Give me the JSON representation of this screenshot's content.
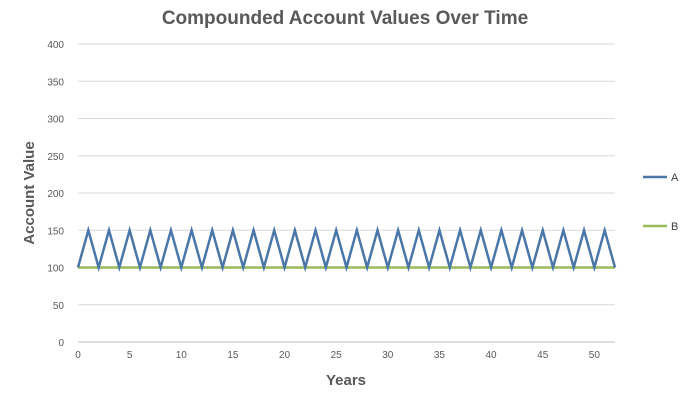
{
  "chart_data": {
    "type": "line",
    "title": "Compounded Account Values Over Time",
    "xlabel": "Years",
    "ylabel": "Account Value",
    "xlim": [
      0,
      52
    ],
    "ylim": [
      0,
      400
    ],
    "x_ticks": [
      0,
      5,
      10,
      15,
      20,
      25,
      30,
      35,
      40,
      45,
      50
    ],
    "y_ticks": [
      0,
      50,
      100,
      150,
      200,
      250,
      300,
      350,
      400
    ],
    "grid": "horizontal",
    "legend_position": "right",
    "series": [
      {
        "name": "A",
        "color": "#4a76a8",
        "x": [
          0,
          1,
          2,
          3,
          4,
          5,
          6,
          7,
          8,
          9,
          10,
          11,
          12,
          13,
          14,
          15,
          16,
          17,
          18,
          19,
          20,
          21,
          22,
          23,
          24,
          25,
          26,
          27,
          28,
          29,
          30,
          31,
          32,
          33,
          34,
          35,
          36,
          37,
          38,
          39,
          40,
          41,
          42,
          43,
          44,
          45,
          46,
          47,
          48,
          49,
          50,
          51,
          52
        ],
        "values": [
          100,
          150,
          100,
          150,
          100,
          150,
          100,
          150,
          100,
          150,
          100,
          150,
          100,
          150,
          100,
          150,
          100,
          150,
          100,
          150,
          100,
          150,
          100,
          150,
          100,
          150,
          100,
          150,
          100,
          150,
          100,
          150,
          100,
          150,
          100,
          150,
          100,
          150,
          100,
          150,
          100,
          150,
          100,
          150,
          100,
          150,
          100,
          150,
          100,
          150,
          100,
          150,
          100
        ]
      },
      {
        "name": "B",
        "color": "#9bbb59",
        "x": [
          0,
          1,
          2,
          3,
          4,
          5,
          6,
          7,
          8,
          9,
          10,
          11,
          12,
          13,
          14,
          15,
          16,
          17,
          18,
          19,
          20,
          21,
          22,
          23,
          24,
          25,
          26,
          27,
          28,
          29,
          30,
          31,
          32,
          33,
          34,
          35,
          36,
          37,
          38,
          39,
          40,
          41,
          42,
          43,
          44,
          45,
          46,
          47,
          48,
          49,
          50,
          51,
          52
        ],
        "values": [
          100,
          100,
          100,
          100,
          100,
          100,
          100,
          100,
          100,
          100,
          100,
          100,
          100,
          100,
          100,
          100,
          100,
          100,
          100,
          100,
          100,
          100,
          100,
          100,
          100,
          100,
          100,
          100,
          100,
          100,
          100,
          100,
          100,
          100,
          100,
          100,
          100,
          100,
          100,
          100,
          100,
          100,
          100,
          100,
          100,
          100,
          100,
          100,
          100,
          100,
          100,
          100,
          100
        ]
      }
    ]
  }
}
